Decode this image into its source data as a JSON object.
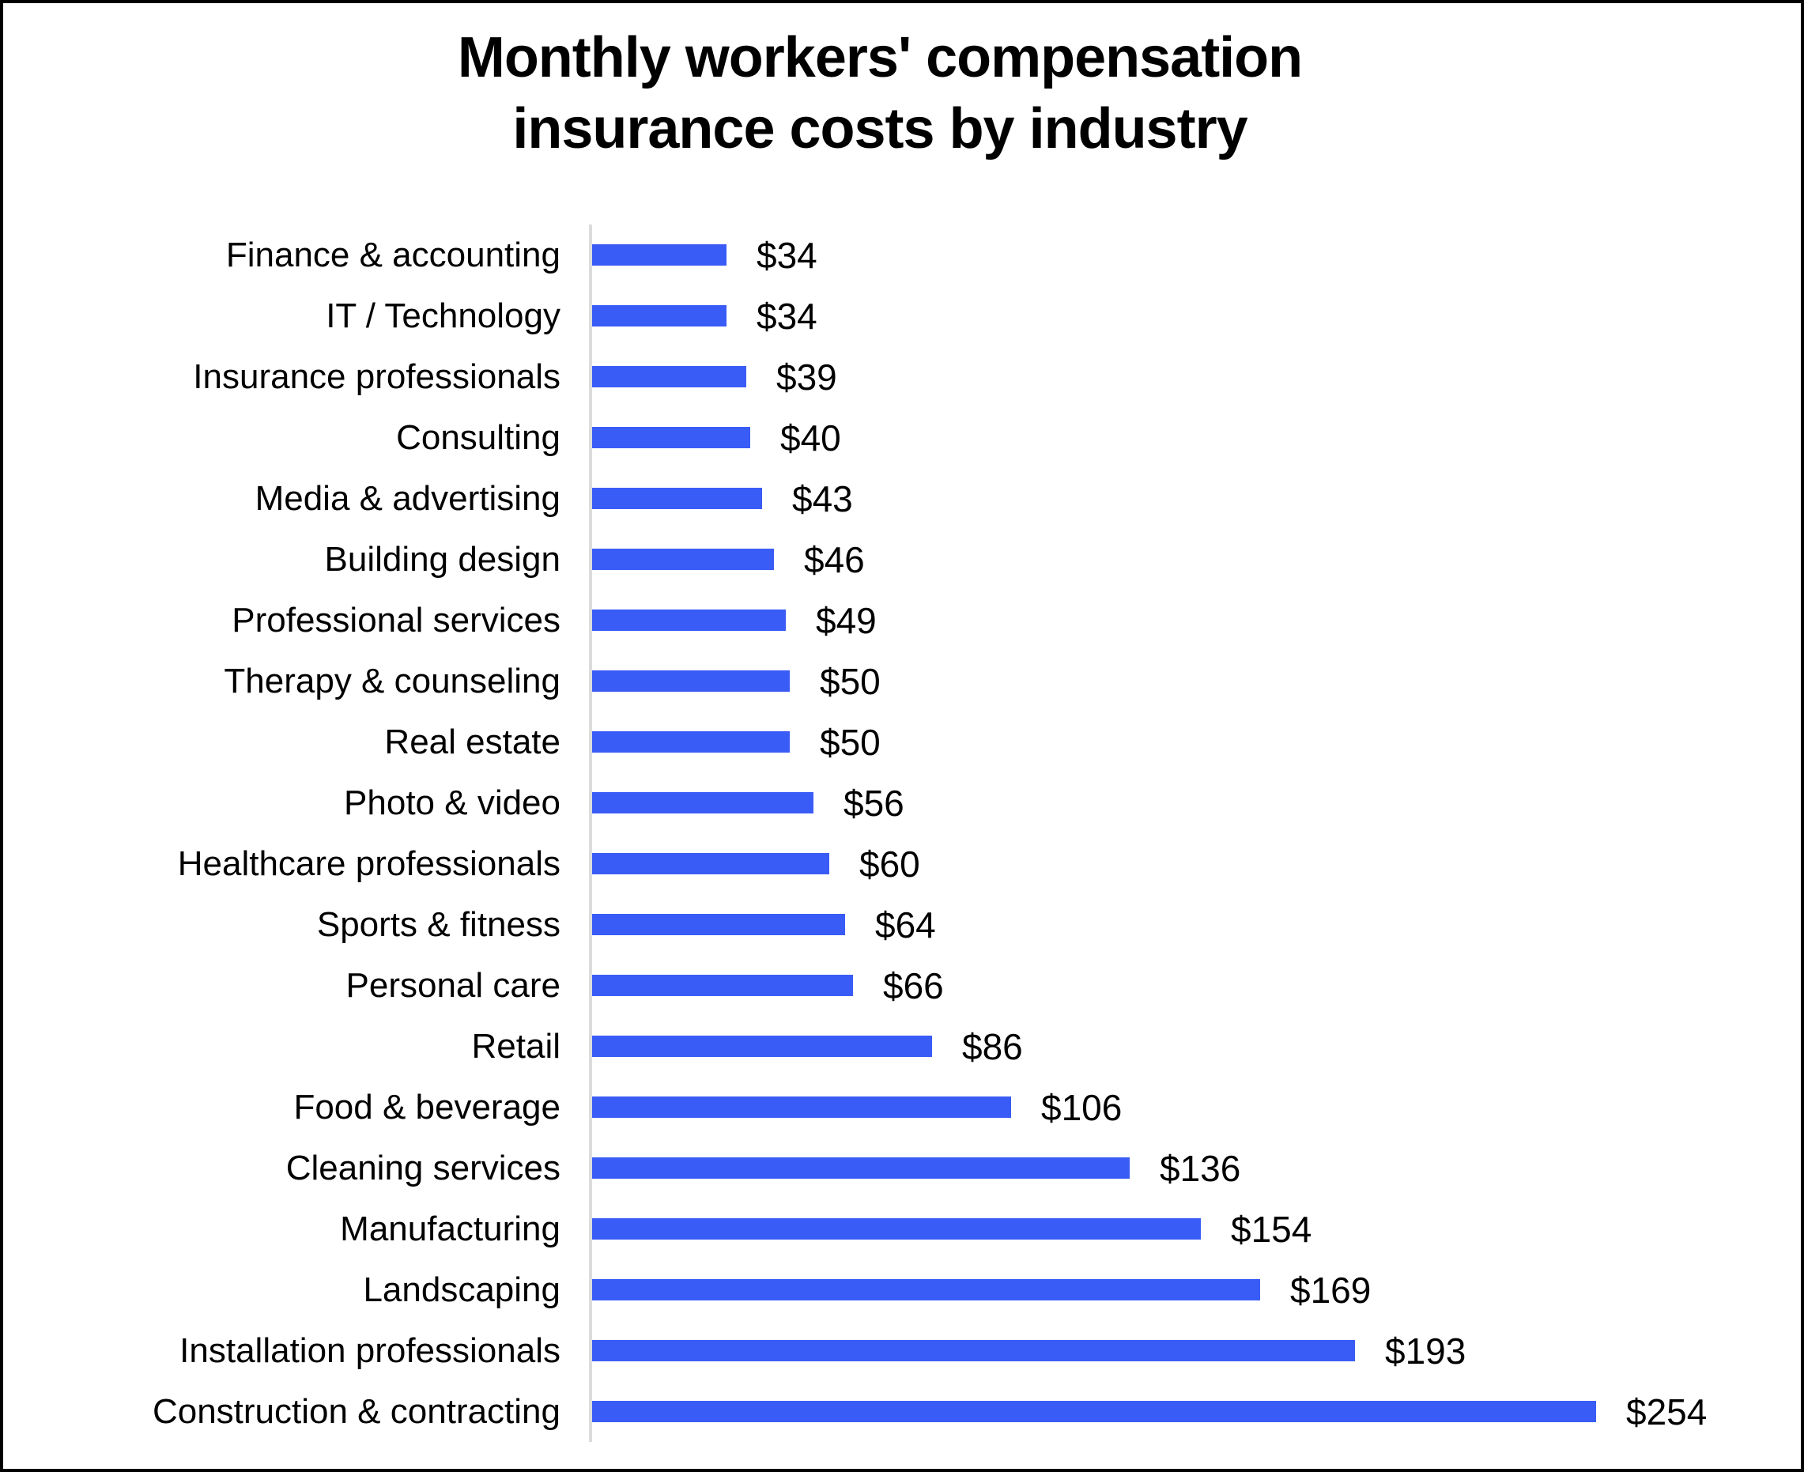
{
  "frame": {
    "background": "#FFFFFF",
    "border_color": "#000000"
  },
  "title": {
    "text": "Monthly workers' compensation insurance costs by industry",
    "lines": [
      "Monthly workers' compensation",
      "insurance costs by industry"
    ]
  },
  "chart_data": {
    "type": "bar",
    "orientation": "horizontal",
    "title": "Monthly workers' compensation insurance costs by industry",
    "categories": [
      "Finance & accounting",
      "IT / Technology",
      "Insurance professionals",
      "Consulting",
      "Media & advertising",
      "Building design",
      "Professional services",
      "Therapy & counseling",
      "Real estate",
      "Photo & video",
      "Healthcare professionals",
      "Sports & fitness",
      "Personal care",
      "Retail",
      "Food & beverage",
      "Cleaning services",
      "Manufacturing",
      "Landscaping",
      "Installation professionals",
      "Construction & contracting"
    ],
    "values": [
      34,
      34,
      39,
      40,
      43,
      46,
      49,
      50,
      50,
      56,
      60,
      64,
      66,
      86,
      106,
      136,
      154,
      169,
      193,
      254
    ],
    "value_prefix": "$",
    "value_labels": [
      "$34",
      "$34",
      "$39",
      "$40",
      "$43",
      "$46",
      "$49",
      "$50",
      "$50",
      "$56",
      "$60",
      "$64",
      "$66",
      "$86",
      "$106",
      "$136",
      "$154",
      "$169",
      "$193",
      "$254"
    ],
    "xlabel": "",
    "ylabel": "",
    "xlim": [
      0,
      260
    ],
    "grid": false,
    "legend": false,
    "data_labels": true,
    "bar_color": "#3A5CF6",
    "axis_line_color": "#DCDCDC",
    "text_color": "#000000"
  }
}
